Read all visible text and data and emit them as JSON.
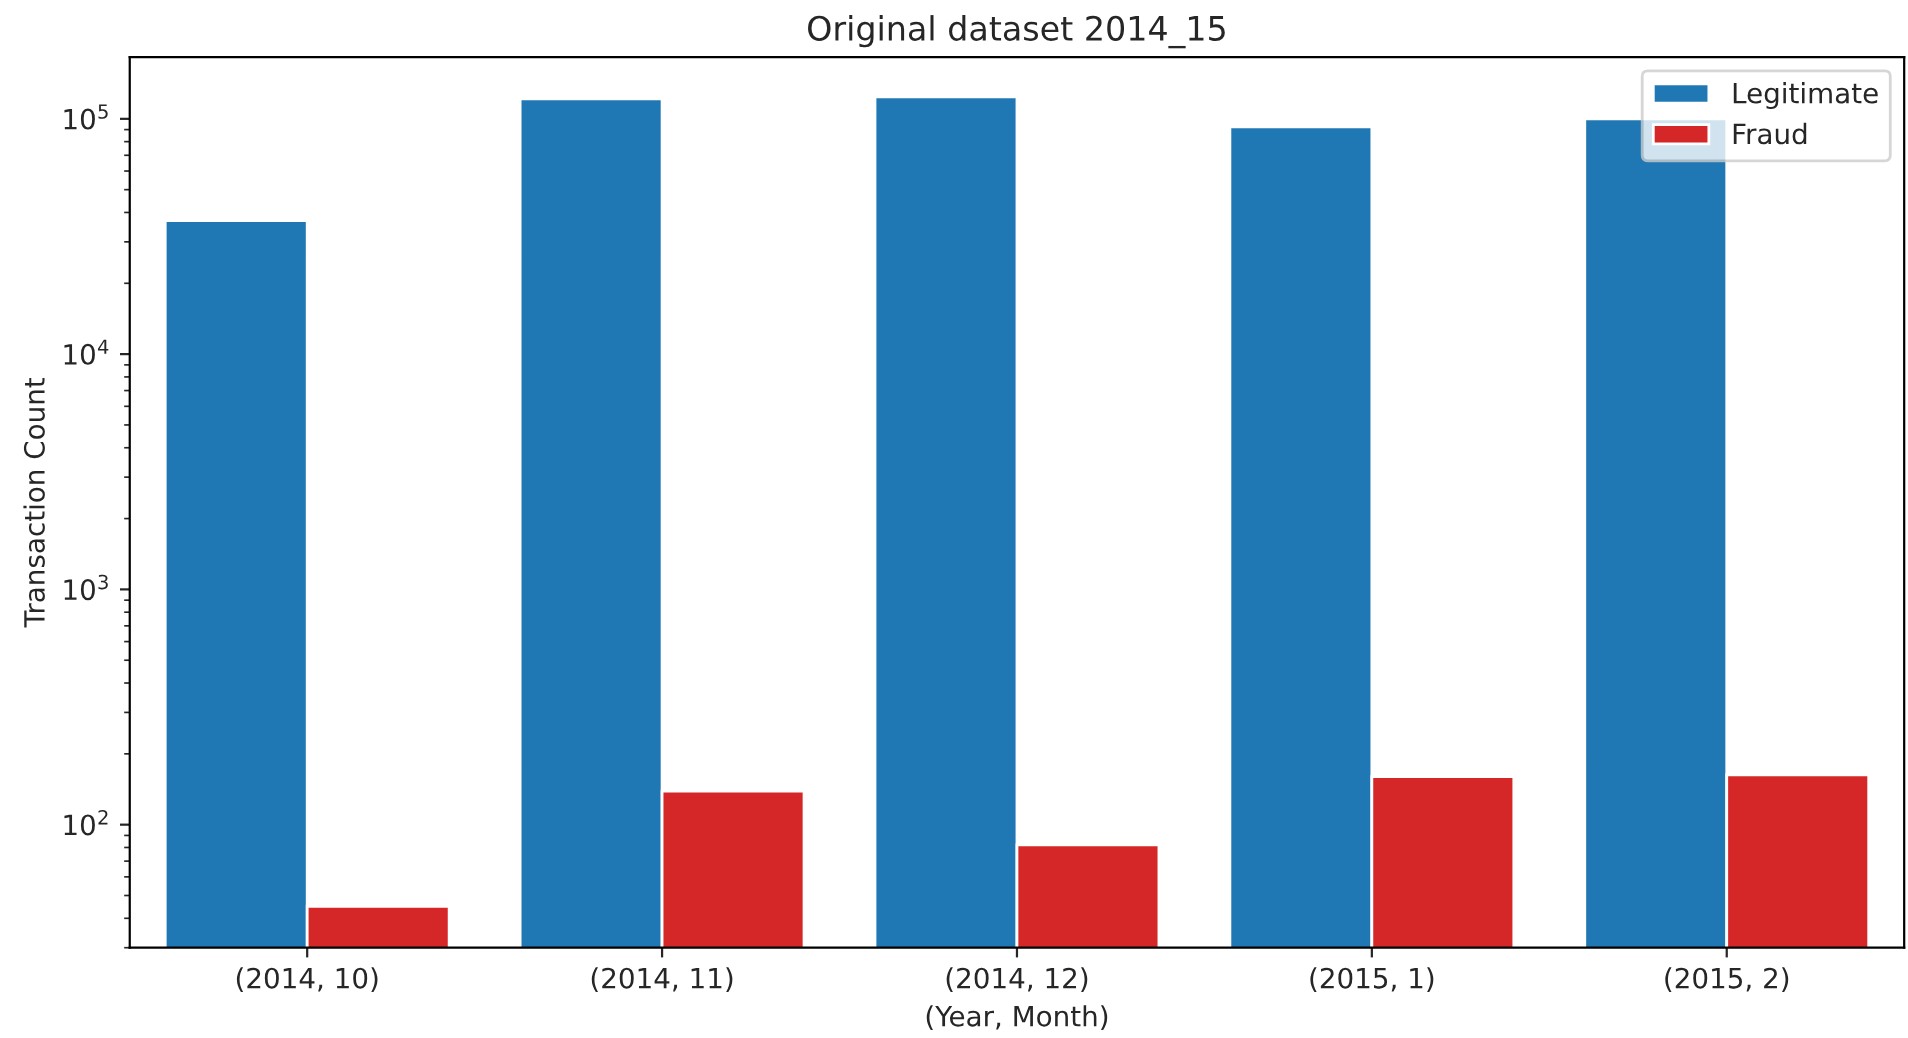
{
  "chart_data": {
    "type": "bar",
    "title": "Original dataset 2014_15",
    "xlabel": "(Year, Month)",
    "ylabel": "Transaction Count",
    "categories": [
      "(2014, 10)",
      "(2014, 11)",
      "(2014, 12)",
      "(2015, 1)",
      "(2015, 2)"
    ],
    "series": [
      {
        "name": "Legitimate",
        "color": "#1f77b4",
        "values": [
          36900,
          121600,
          124000,
          92500,
          100000
        ]
      },
      {
        "name": "Fraud",
        "color": "#d62728",
        "values": [
          45,
          139,
          82,
          160,
          163
        ]
      }
    ],
    "log": "y",
    "ylim": [
      30,
      183000
    ],
    "yticks": [
      {
        "value": 100,
        "label": "10$^{2}$"
      },
      {
        "value": 1000,
        "label": "10$^{3}$"
      },
      {
        "value": 10000,
        "label": "10$^{4}$"
      },
      {
        "value": 100000,
        "label": "10$^{5}$"
      }
    ],
    "legend": "top right",
    "grid": false
  }
}
